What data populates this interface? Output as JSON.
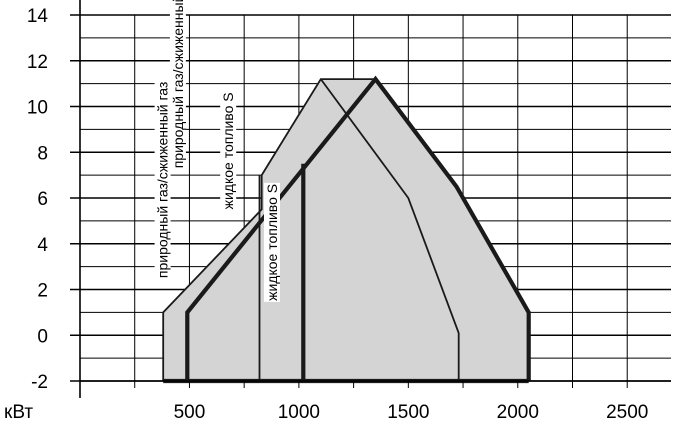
{
  "chart_data": {
    "type": "area",
    "x_unit_label": "кВт",
    "xlim": [
      0,
      2700
    ],
    "ylim": [
      -2,
      14
    ],
    "x_ticks": [
      500,
      1000,
      1500,
      2000,
      2500
    ],
    "y_ticks": [
      -2,
      0,
      2,
      4,
      6,
      8,
      10,
      12,
      14
    ],
    "grid": true,
    "colors": {
      "fill": "#d4d4d4",
      "line": "#1a1a1a",
      "grid": "#000000"
    },
    "series": [
      {
        "outline": "thin",
        "points": [
          [
            380,
            -2
          ],
          [
            380,
            1
          ],
          [
            830,
            5.5
          ],
          [
            830,
            7
          ],
          [
            1100,
            11.2
          ],
          [
            1350,
            11.2
          ],
          [
            1720,
            6.5
          ],
          [
            2050,
            1
          ],
          [
            2050,
            -2
          ]
        ]
      },
      {
        "outline": "thick",
        "points": [
          [
            490,
            -2
          ],
          [
            490,
            1
          ],
          [
            1350,
            11.2
          ],
          [
            1720,
            6.5
          ],
          [
            2050,
            1
          ],
          [
            2050,
            -2
          ]
        ]
      },
      {
        "outline": "thin",
        "points": [
          [
            1100,
            11.2
          ],
          [
            1500,
            6
          ],
          [
            1730,
            0.1
          ],
          [
            1730,
            -2
          ]
        ]
      },
      {
        "outline": "thin",
        "points": [
          [
            820,
            -2
          ],
          [
            820,
            7
          ]
        ]
      },
      {
        "outline": "thick",
        "points": [
          [
            1020,
            -2
          ],
          [
            1020,
            7.5
          ]
        ]
      }
    ],
    "annotations": [
      {
        "text": "природный газ/сжиженный газ",
        "x": 400,
        "y": 2.5
      },
      {
        "text": "природный газ/сжиженный газ",
        "x": 470,
        "y": 7.3
      },
      {
        "text": "жидкое топливо S",
        "x": 700,
        "y": 5.5
      },
      {
        "text": "жидкое топливо S",
        "x": 900,
        "y": 1.5
      }
    ]
  }
}
